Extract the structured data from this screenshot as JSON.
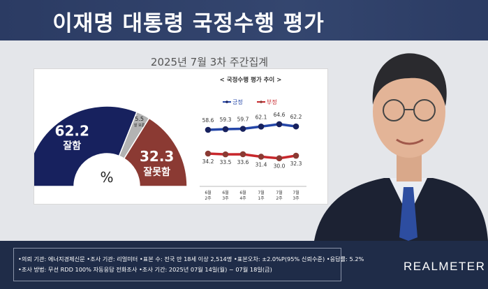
{
  "header": {
    "title": "이재명 대통령 국정수행 평가"
  },
  "subtitle": "2025년 7월 3차 주간집계",
  "donut": {
    "unit": "%",
    "segments": [
      {
        "label": "잘함",
        "value": 62.2,
        "color": "#17215e"
      },
      {
        "label": "잘 모름",
        "value": 5.5,
        "color": "#b3b3b3"
      },
      {
        "label": "잘못함",
        "value": 32.3,
        "color": "#8b3a33"
      }
    ]
  },
  "trend": {
    "title": "< 국정수행 평가 추이 >",
    "categories": [
      [
        "6월",
        "2주"
      ],
      [
        "6월",
        "3주"
      ],
      [
        "6월",
        "4주"
      ],
      [
        "7월",
        "1주"
      ],
      [
        "7월",
        "2주"
      ],
      [
        "7월",
        "3주"
      ]
    ],
    "series": [
      {
        "name": "긍정",
        "values": [
          58.6,
          59.3,
          59.7,
          62.1,
          64.6,
          62.2
        ],
        "color": "#2446a8",
        "marker": "#17215e"
      },
      {
        "name": "부정",
        "values": [
          34.2,
          33.5,
          33.6,
          31.4,
          30.0,
          32.3
        ],
        "color": "#c8272c",
        "marker": "#8b3a33"
      }
    ]
  },
  "footer": {
    "lines": [
      "•의뢰 기관: 에너지경제신문 •조사 기관: 리얼미터 •표본 수: 전국 만 18세 이상 2,514명 •표본오차: ±2.0%P(95% 신뢰수준) •응답률: 5.2%",
      "•조사 방법: 무선 RDD 100% 자동응답 전화조사 •조사 기간: 2025년 07월 14일(월) ~ 07월 18일(금)"
    ],
    "brand": "REALMETER"
  }
}
